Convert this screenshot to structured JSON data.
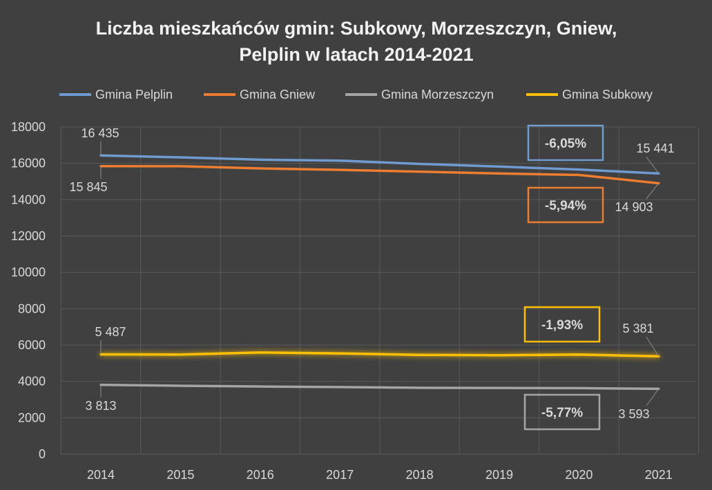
{
  "chart_data": {
    "type": "line",
    "title_line1": "Liczba mieszkańców gmin: Subkowy, Morzeszczyn, Gniew,",
    "title_line2": "Pelplin w latach 2014-2021",
    "categories": [
      "2014",
      "2015",
      "2016",
      "2017",
      "2018",
      "2019",
      "2020",
      "2021"
    ],
    "ylim": [
      0,
      18000
    ],
    "yticks": [
      0,
      2000,
      4000,
      6000,
      8000,
      10000,
      12000,
      14000,
      16000,
      18000
    ],
    "grid": true,
    "legend_position": "top",
    "series": [
      {
        "name": "Gmina Pelplin",
        "color": "#6f9bd1",
        "values": [
          16435,
          16330,
          16200,
          16150,
          15970,
          15820,
          15660,
          15441
        ],
        "first_label": "16 435",
        "last_label": "15 441",
        "change_label": "-6,05%"
      },
      {
        "name": "Gmina Gniew",
        "color": "#ed7d31",
        "values": [
          15845,
          15840,
          15720,
          15640,
          15540,
          15440,
          15360,
          14903
        ],
        "first_label": "15 845",
        "last_label": "14 903",
        "change_label": "-5,94%"
      },
      {
        "name": "Gmina Morzeszczyn",
        "color": "#a5a5a5",
        "values": [
          3813,
          3760,
          3720,
          3690,
          3650,
          3640,
          3630,
          3593
        ],
        "first_label": "3 813",
        "last_label": "3 593",
        "change_label": "-5,77%"
      },
      {
        "name": "Gmina Subkowy",
        "color": "#ffc000",
        "values": [
          5487,
          5480,
          5590,
          5540,
          5460,
          5440,
          5480,
          5381
        ],
        "first_label": "5 487",
        "last_label": "5 381",
        "change_label": "-1,93%"
      }
    ]
  }
}
